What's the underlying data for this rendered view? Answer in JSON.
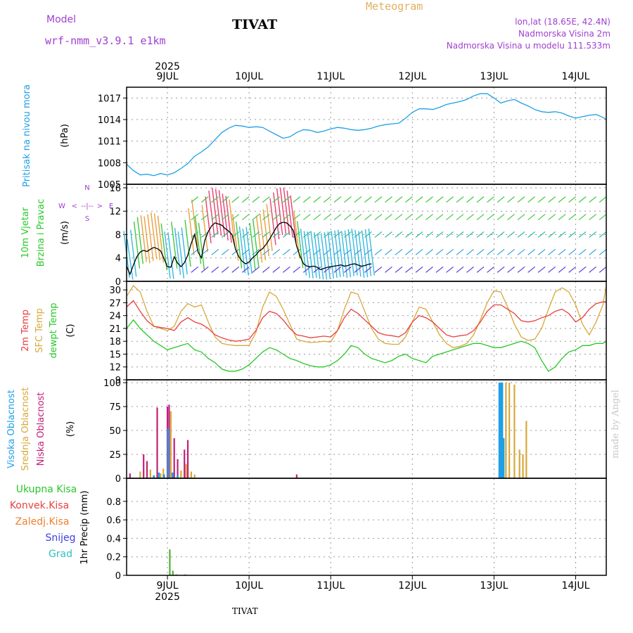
{
  "header": {
    "model_label": "Model",
    "model_name": "wrf-nmm_v3.9.1 e1km",
    "station": "TIVAT",
    "meteogram": "Meteogram",
    "lonlat": "lon,lat (18.65E, 42.4N)",
    "elev": "Nadmorska Visina 2m",
    "elev_model": "Nadmorska Visina u modelu 111.533m",
    "watermark": "made by Angel",
    "footer_station": "TIVAT"
  },
  "colors": {
    "pressure": "#1ea0e6",
    "temp2m": "#e84040",
    "sfc": "#d8a83a",
    "dewpt": "#28c828",
    "high_cloud": "#1ea0e6",
    "mid_cloud": "#d8a83a",
    "low_cloud": "#c0207a",
    "precip": "#50b030"
  },
  "chart_data": {
    "type": "meteogram",
    "x": {
      "year": "2025",
      "days": [
        "9JUL",
        "10JUL",
        "11JUL",
        "12JUL",
        "13JUL",
        "14JUL"
      ],
      "start_hour": 0,
      "end_hour": 141,
      "day_hours": [
        12,
        36,
        60,
        84,
        108,
        132
      ]
    },
    "panels": [
      {
        "id": "pressure",
        "ylabel": [
          "Pritisak na nivou mora",
          "(hPa)"
        ],
        "ylim": [
          1005,
          1018.5
        ],
        "yticks": [
          1005,
          1008,
          1011,
          1014,
          1017
        ],
        "series": [
          {
            "key": "pressure",
            "x": [
              0,
              2,
              4,
              6,
              8,
              10,
              12,
              14,
              16,
              18,
              20,
              22,
              24,
              26,
              28,
              30,
              32,
              34,
              36,
              38,
              40,
              42,
              44,
              46,
              48,
              50,
              52,
              54,
              56,
              58,
              60,
              62,
              64,
              66,
              68,
              70,
              72,
              74,
              76,
              78,
              80,
              82,
              84,
              86,
              88,
              90,
              92,
              94,
              96,
              98,
              100,
              102,
              104,
              106,
              108,
              110,
              112,
              114,
              116,
              118,
              120,
              122,
              124,
              126,
              128,
              130,
              132,
              134,
              136,
              138,
              140,
              141
            ],
            "values": [
              1007.8,
              1006.9,
              1006.3,
              1006.4,
              1006.2,
              1006.5,
              1006.3,
              1006.6,
              1007.2,
              1007.9,
              1008.9,
              1009.5,
              1010.2,
              1011.2,
              1012.2,
              1012.8,
              1013.2,
              1013.1,
              1012.9,
              1013.0,
              1012.9,
              1012.4,
              1011.9,
              1011.4,
              1011.6,
              1012.2,
              1012.6,
              1012.5,
              1012.2,
              1012.4,
              1012.7,
              1012.9,
              1012.8,
              1012.6,
              1012.5,
              1012.6,
              1012.8,
              1013.1,
              1013.3,
              1013.4,
              1013.5,
              1014.2,
              1015.0,
              1015.5,
              1015.5,
              1015.4,
              1015.7,
              1016.1,
              1016.3,
              1016.5,
              1016.8,
              1017.3,
              1017.6,
              1017.6,
              1017.0,
              1016.3,
              1016.6,
              1016.8,
              1016.3,
              1015.9,
              1015.4,
              1015.1,
              1015.0,
              1015.1,
              1014.9,
              1014.5,
              1014.2,
              1014.4,
              1014.6,
              1014.7,
              1014.3,
              1014.0
            ]
          }
        ]
      },
      {
        "id": "wind",
        "ylabel": [
          "10m Vjetar",
          "Brzina i Pravac",
          "(m/s)"
        ],
        "ylim": [
          0,
          16.6
        ],
        "yticks": [
          0,
          4,
          8,
          12,
          16
        ],
        "compass": [
          "N",
          "E",
          "S",
          "W",
          "<",
          ">",
          "--|--"
        ],
        "series": [
          {
            "key": "wind_speed",
            "x": [
              0,
              1,
              2,
              3,
              4,
              5,
              6,
              7,
              8,
              9,
              10,
              11,
              12,
              13,
              14,
              15,
              16,
              17,
              18,
              19,
              20,
              21,
              22,
              23,
              24,
              25,
              26,
              27,
              28,
              29,
              30,
              31,
              32,
              33,
              34,
              35,
              36,
              37,
              38,
              39,
              40,
              41,
              42,
              43,
              44,
              45,
              46,
              47,
              48,
              49,
              50,
              51,
              52,
              53,
              54,
              55,
              56,
              57,
              58,
              59,
              60,
              61,
              62,
              63,
              64,
              65,
              66,
              67,
              68,
              69,
              70,
              71,
              72
            ],
            "values": [
              2.6,
              1.2,
              2.8,
              4.2,
              5.0,
              5.3,
              5.1,
              5.5,
              5.8,
              5.6,
              5.2,
              3.9,
              2.5,
              2.4,
              4.2,
              3.1,
              2.5,
              3.2,
              4.5,
              6.5,
              8.0,
              5.0,
              4.0,
              7.0,
              8.5,
              9.5,
              10.0,
              9.8,
              9.6,
              9.0,
              8.6,
              8.0,
              5.5,
              4.2,
              3.4,
              3.0,
              3.3,
              4.0,
              4.5,
              5.2,
              5.6,
              6.3,
              7.2,
              8.2,
              9.2,
              9.9,
              10.1,
              10.0,
              9.5,
              8.7,
              6.0,
              4.3,
              3.0,
              2.6,
              2.5,
              2.6,
              2.4,
              2.0,
              2.2,
              2.4,
              2.5,
              2.6,
              2.7,
              2.8,
              2.6,
              2.7,
              2.9,
              3.0,
              2.8,
              2.6,
              2.7,
              2.9,
              3.0
            ]
          }
        ]
      },
      {
        "id": "temp",
        "ylabel": [
          "2m Temp",
          "SFC Temp",
          "dewpt Temp",
          "(C)"
        ],
        "ylim": [
          9,
          32
        ],
        "yticks": [
          9,
          12,
          15,
          18,
          21,
          24,
          27,
          30
        ],
        "series": [
          {
            "key": "sfc",
            "x": [
              0,
              2,
              4,
              6,
              8,
              10,
              12,
              14,
              16,
              18,
              20,
              22,
              24,
              26,
              28,
              30,
              32,
              34,
              36,
              38,
              40,
              42,
              44,
              46,
              48,
              50,
              52,
              54,
              56,
              58,
              60,
              62,
              64,
              66,
              68,
              70,
              72,
              74,
              76,
              78,
              80,
              82,
              84,
              86,
              88,
              90,
              92,
              94,
              96,
              98,
              100,
              102,
              104,
              106,
              108,
              110,
              112,
              114,
              116,
              118,
              120,
              122,
              124,
              126,
              128,
              130,
              132,
              134,
              136,
              138,
              140,
              141
            ],
            "values": [
              28.5,
              31.0,
              29.5,
              25.0,
              21.5,
              21.0,
              20.5,
              21.5,
              25.0,
              26.8,
              26.0,
              26.5,
              22.5,
              19.0,
              17.5,
              17.2,
              17.0,
              17.0,
              17.0,
              20.0,
              26.0,
              29.5,
              28.5,
              25.5,
              22.0,
              18.5,
              18.0,
              17.7,
              17.8,
              18.0,
              17.8,
              20.5,
              25.5,
              29.5,
              29.0,
              25.0,
              21.0,
              18.5,
              17.5,
              17.3,
              17.3,
              19.0,
              22.5,
              26.0,
              25.5,
              22.5,
              19.5,
              17.5,
              16.5,
              16.8,
              17.5,
              19.5,
              23.0,
              27.0,
              29.8,
              29.5,
              26.0,
              22.0,
              19.0,
              18.2,
              18.5,
              21.0,
              25.5,
              29.5,
              30.5,
              29.5,
              26.5,
              22.0,
              19.5,
              22.5,
              26.5,
              31.0
            ]
          },
          {
            "key": "temp2m",
            "x": [
              0,
              2,
              4,
              6,
              8,
              10,
              12,
              14,
              16,
              18,
              20,
              22,
              24,
              26,
              28,
              30,
              32,
              34,
              36,
              38,
              40,
              42,
              44,
              46,
              48,
              50,
              52,
              54,
              56,
              58,
              60,
              62,
              64,
              66,
              68,
              70,
              72,
              74,
              76,
              78,
              80,
              82,
              84,
              86,
              88,
              90,
              92,
              94,
              96,
              98,
              100,
              102,
              104,
              106,
              108,
              110,
              112,
              114,
              116,
              118,
              120,
              122,
              124,
              126,
              128,
              130,
              132,
              134,
              136,
              138,
              140,
              141
            ],
            "values": [
              26.0,
              27.5,
              25.0,
              22.8,
              21.5,
              21.2,
              21.0,
              20.5,
              22.5,
              23.5,
              22.5,
              22.0,
              21.0,
              19.5,
              18.8,
              18.3,
              18.0,
              18.2,
              18.5,
              20.5,
              23.5,
              25.0,
              24.5,
              23.0,
              21.0,
              19.5,
              19.2,
              18.8,
              19.0,
              19.2,
              19.0,
              20.5,
              23.5,
              25.5,
              24.5,
              23.0,
              21.5,
              20.0,
              19.5,
              19.3,
              19.0,
              20.0,
              22.5,
              24.0,
              23.5,
              22.5,
              21.0,
              19.5,
              19.0,
              19.3,
              19.5,
              20.5,
              22.5,
              25.0,
              26.5,
              26.5,
              25.5,
              24.5,
              22.8,
              22.5,
              22.8,
              23.5,
              24.0,
              25.0,
              25.5,
              24.5,
              22.5,
              23.5,
              25.5,
              26.8,
              27.2,
              27.3
            ]
          },
          {
            "key": "dewpt",
            "x": [
              0,
              2,
              4,
              6,
              8,
              10,
              12,
              14,
              16,
              18,
              20,
              22,
              24,
              26,
              28,
              30,
              32,
              34,
              36,
              38,
              40,
              42,
              44,
              46,
              48,
              50,
              52,
              54,
              56,
              58,
              60,
              62,
              64,
              66,
              68,
              70,
              72,
              74,
              76,
              78,
              80,
              82,
              84,
              86,
              88,
              90,
              92,
              94,
              96,
              98,
              100,
              102,
              104,
              106,
              108,
              110,
              112,
              114,
              116,
              118,
              120,
              122,
              124,
              126,
              128,
              130,
              132,
              134,
              136,
              138,
              140,
              141
            ],
            "values": [
              21.0,
              23.0,
              21.0,
              19.5,
              18.0,
              17.0,
              16.0,
              16.5,
              17.0,
              17.5,
              16.0,
              15.5,
              14.0,
              13.0,
              11.5,
              11.0,
              11.0,
              11.5,
              12.5,
              14.0,
              15.5,
              16.5,
              16.0,
              15.0,
              14.0,
              13.5,
              12.8,
              12.3,
              12.0,
              12.0,
              12.5,
              13.5,
              15.0,
              17.0,
              16.5,
              15.0,
              14.0,
              13.5,
              13.0,
              13.5,
              14.5,
              15.0,
              14.0,
              13.5,
              13.0,
              14.5,
              15.0,
              15.5,
              16.0,
              16.5,
              17.0,
              17.5,
              17.5,
              17.0,
              16.5,
              16.5,
              17.0,
              17.5,
              18.0,
              17.5,
              16.5,
              13.5,
              11.0,
              12.0,
              14.0,
              15.5,
              16.0,
              17.0,
              17.0,
              17.5,
              17.5,
              18.0
            ]
          }
        ]
      },
      {
        "id": "cloud",
        "ylabel": [
          "Visoka Oblacnost",
          "Srednja Oblacnost",
          "Niska Oblacnost",
          "(%)"
        ],
        "ylim": [
          0,
          103
        ],
        "yticks": [
          0,
          25,
          50,
          75,
          100
        ],
        "bars": [
          {
            "key": "low_cloud",
            "x": [
              1,
              5,
              6,
              9,
              12,
              12.5,
              14,
              15,
              17,
              18,
              50
            ],
            "values": [
              5,
              25,
              18,
              74,
              75,
              77,
              42,
              20,
              30,
              40,
              4
            ]
          },
          {
            "key": "mid_cloud",
            "x": [
              4,
              7,
              10,
              10.8,
              13,
              16,
              17.5,
              19,
              20,
              110.8,
              111.5,
              112.5,
              114,
              115.5,
              116.5,
              117.5
            ],
            "values": [
              7,
              9,
              5,
              10,
              70,
              8,
              15,
              7,
              4,
              40,
              100,
              100,
              98,
              30,
              25,
              60
            ]
          },
          {
            "key": "high_cloud",
            "x": [
              8,
              9.5,
              11,
              12.2,
              13.5,
              15,
              109.6,
              110,
              110.4,
              110.8
            ],
            "values": [
              3,
              6,
              4,
              52,
              6,
              3,
              100,
              100,
              100,
              42
            ]
          }
        ]
      },
      {
        "id": "precip",
        "ylabel": [
          "1hr Precip (mm)"
        ],
        "legend": [
          "Ukupna Kisa",
          "Konvek.Kisa",
          "Zaledj.Kisa",
          "Snijeg",
          "Grad"
        ],
        "ylim": [
          0,
          1.05
        ],
        "yticks": [
          0,
          0.2,
          0.4,
          0.6,
          0.8
        ],
        "bars": [
          {
            "key": "precip",
            "x": [
              12.7,
              13.6,
              14.6,
              17.2
            ],
            "values": [
              0.28,
              0.05,
              0.01,
              0.01
            ]
          }
        ]
      }
    ]
  }
}
